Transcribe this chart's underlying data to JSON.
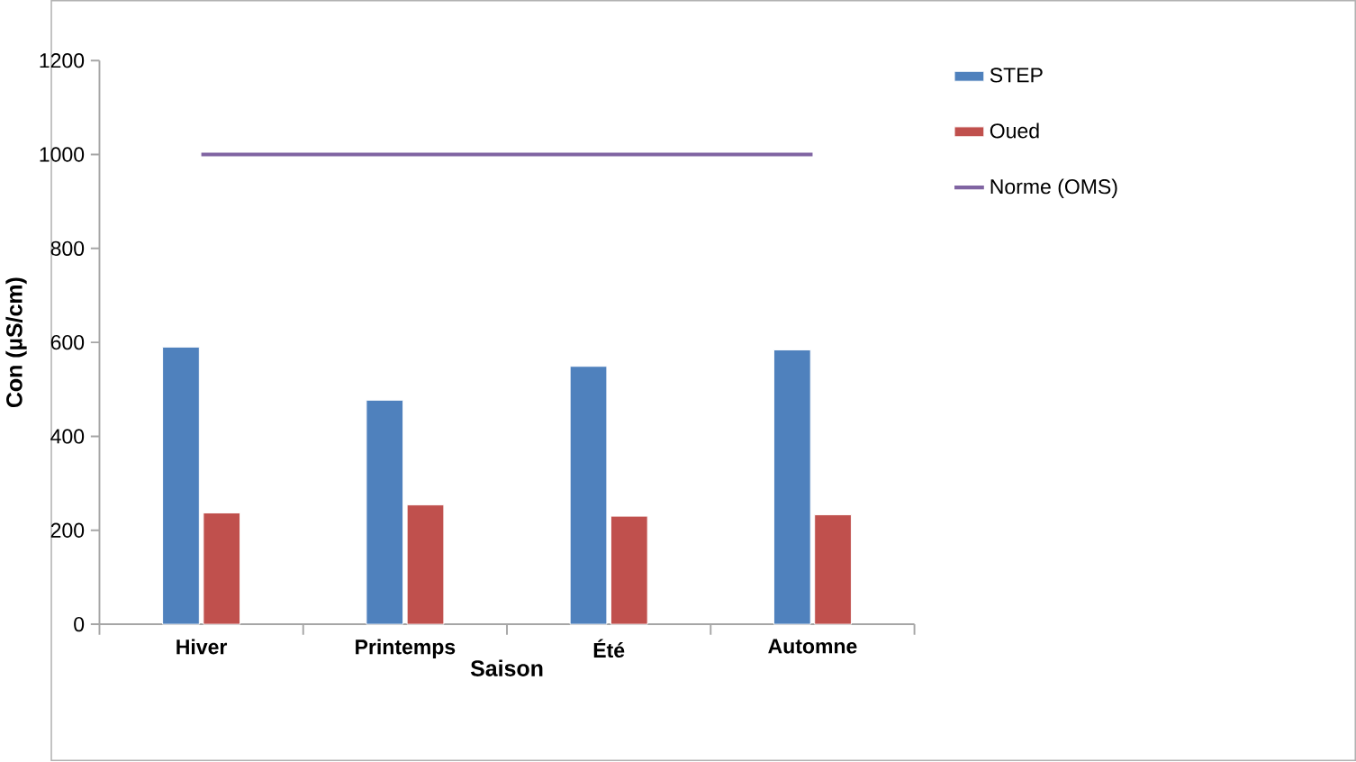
{
  "chart_data": {
    "type": "bar",
    "xlabel": "Saison",
    "ylabel": "Con  (µS/cm)",
    "categories": [
      "Hiver",
      "Printemps",
      "Été",
      "Automne"
    ],
    "series": [
      {
        "name": "STEP",
        "color": "#4f81bd",
        "values": [
          590,
          477,
          549,
          584
        ]
      },
      {
        "name": "Oued",
        "color": "#c0504d",
        "values": [
          237,
          254,
          230,
          233
        ]
      },
      {
        "name": "Norme (OMS)",
        "type": "line",
        "color": "#8064a2",
        "values": [
          1000,
          1000,
          1000,
          1000
        ]
      }
    ],
    "ylim": [
      0,
      1200
    ],
    "yticks": [
      0,
      200,
      400,
      600,
      800,
      1000,
      1200
    ],
    "legend": "right",
    "marker": "none",
    "line_style": "solid"
  }
}
